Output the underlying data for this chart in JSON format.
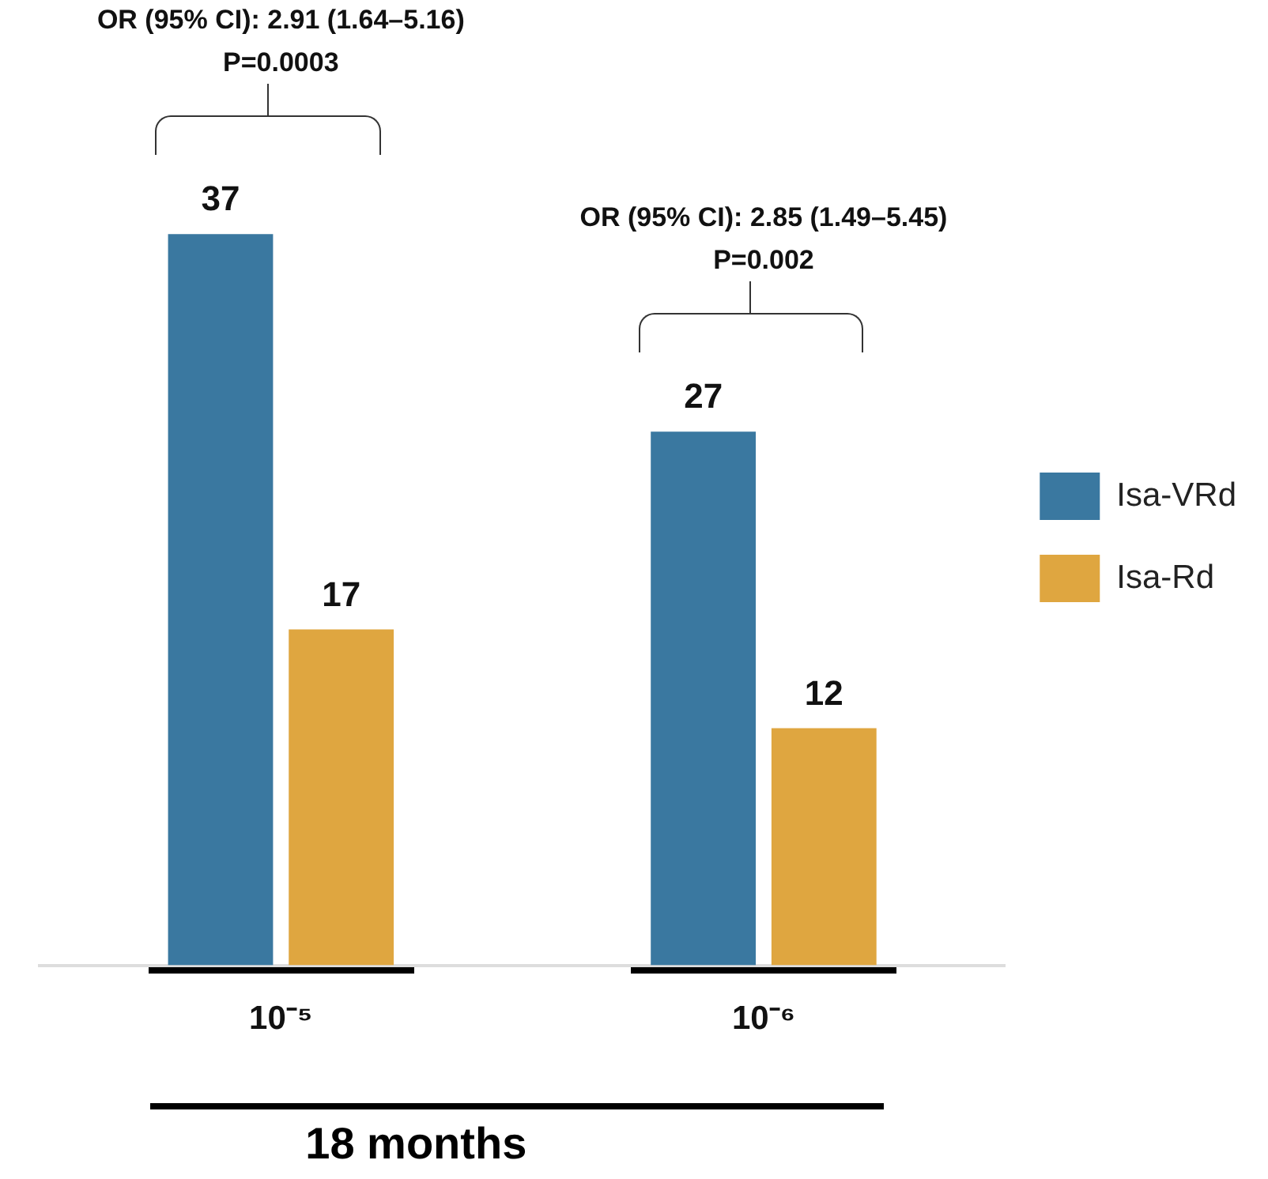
{
  "chart_data": {
    "type": "bar",
    "xlabel": "18 months",
    "categories": [
      "10⁻⁵",
      "10⁻⁶"
    ],
    "series": [
      {
        "name": "Isa-VRd",
        "color": "#3a78a0",
        "values": [
          37,
          27
        ]
      },
      {
        "name": "Isa-Rd",
        "color": "#dfa640",
        "values": [
          17,
          12
        ]
      }
    ],
    "data_labels": true,
    "legend": "right",
    "grid": false,
    "annotations": [
      "OR (95% CI): 2.91 (1.64–5.16)\nP=0.0003",
      "OR (95% CI): 2.85 (1.49–5.45)\nP=0.002"
    ]
  }
}
